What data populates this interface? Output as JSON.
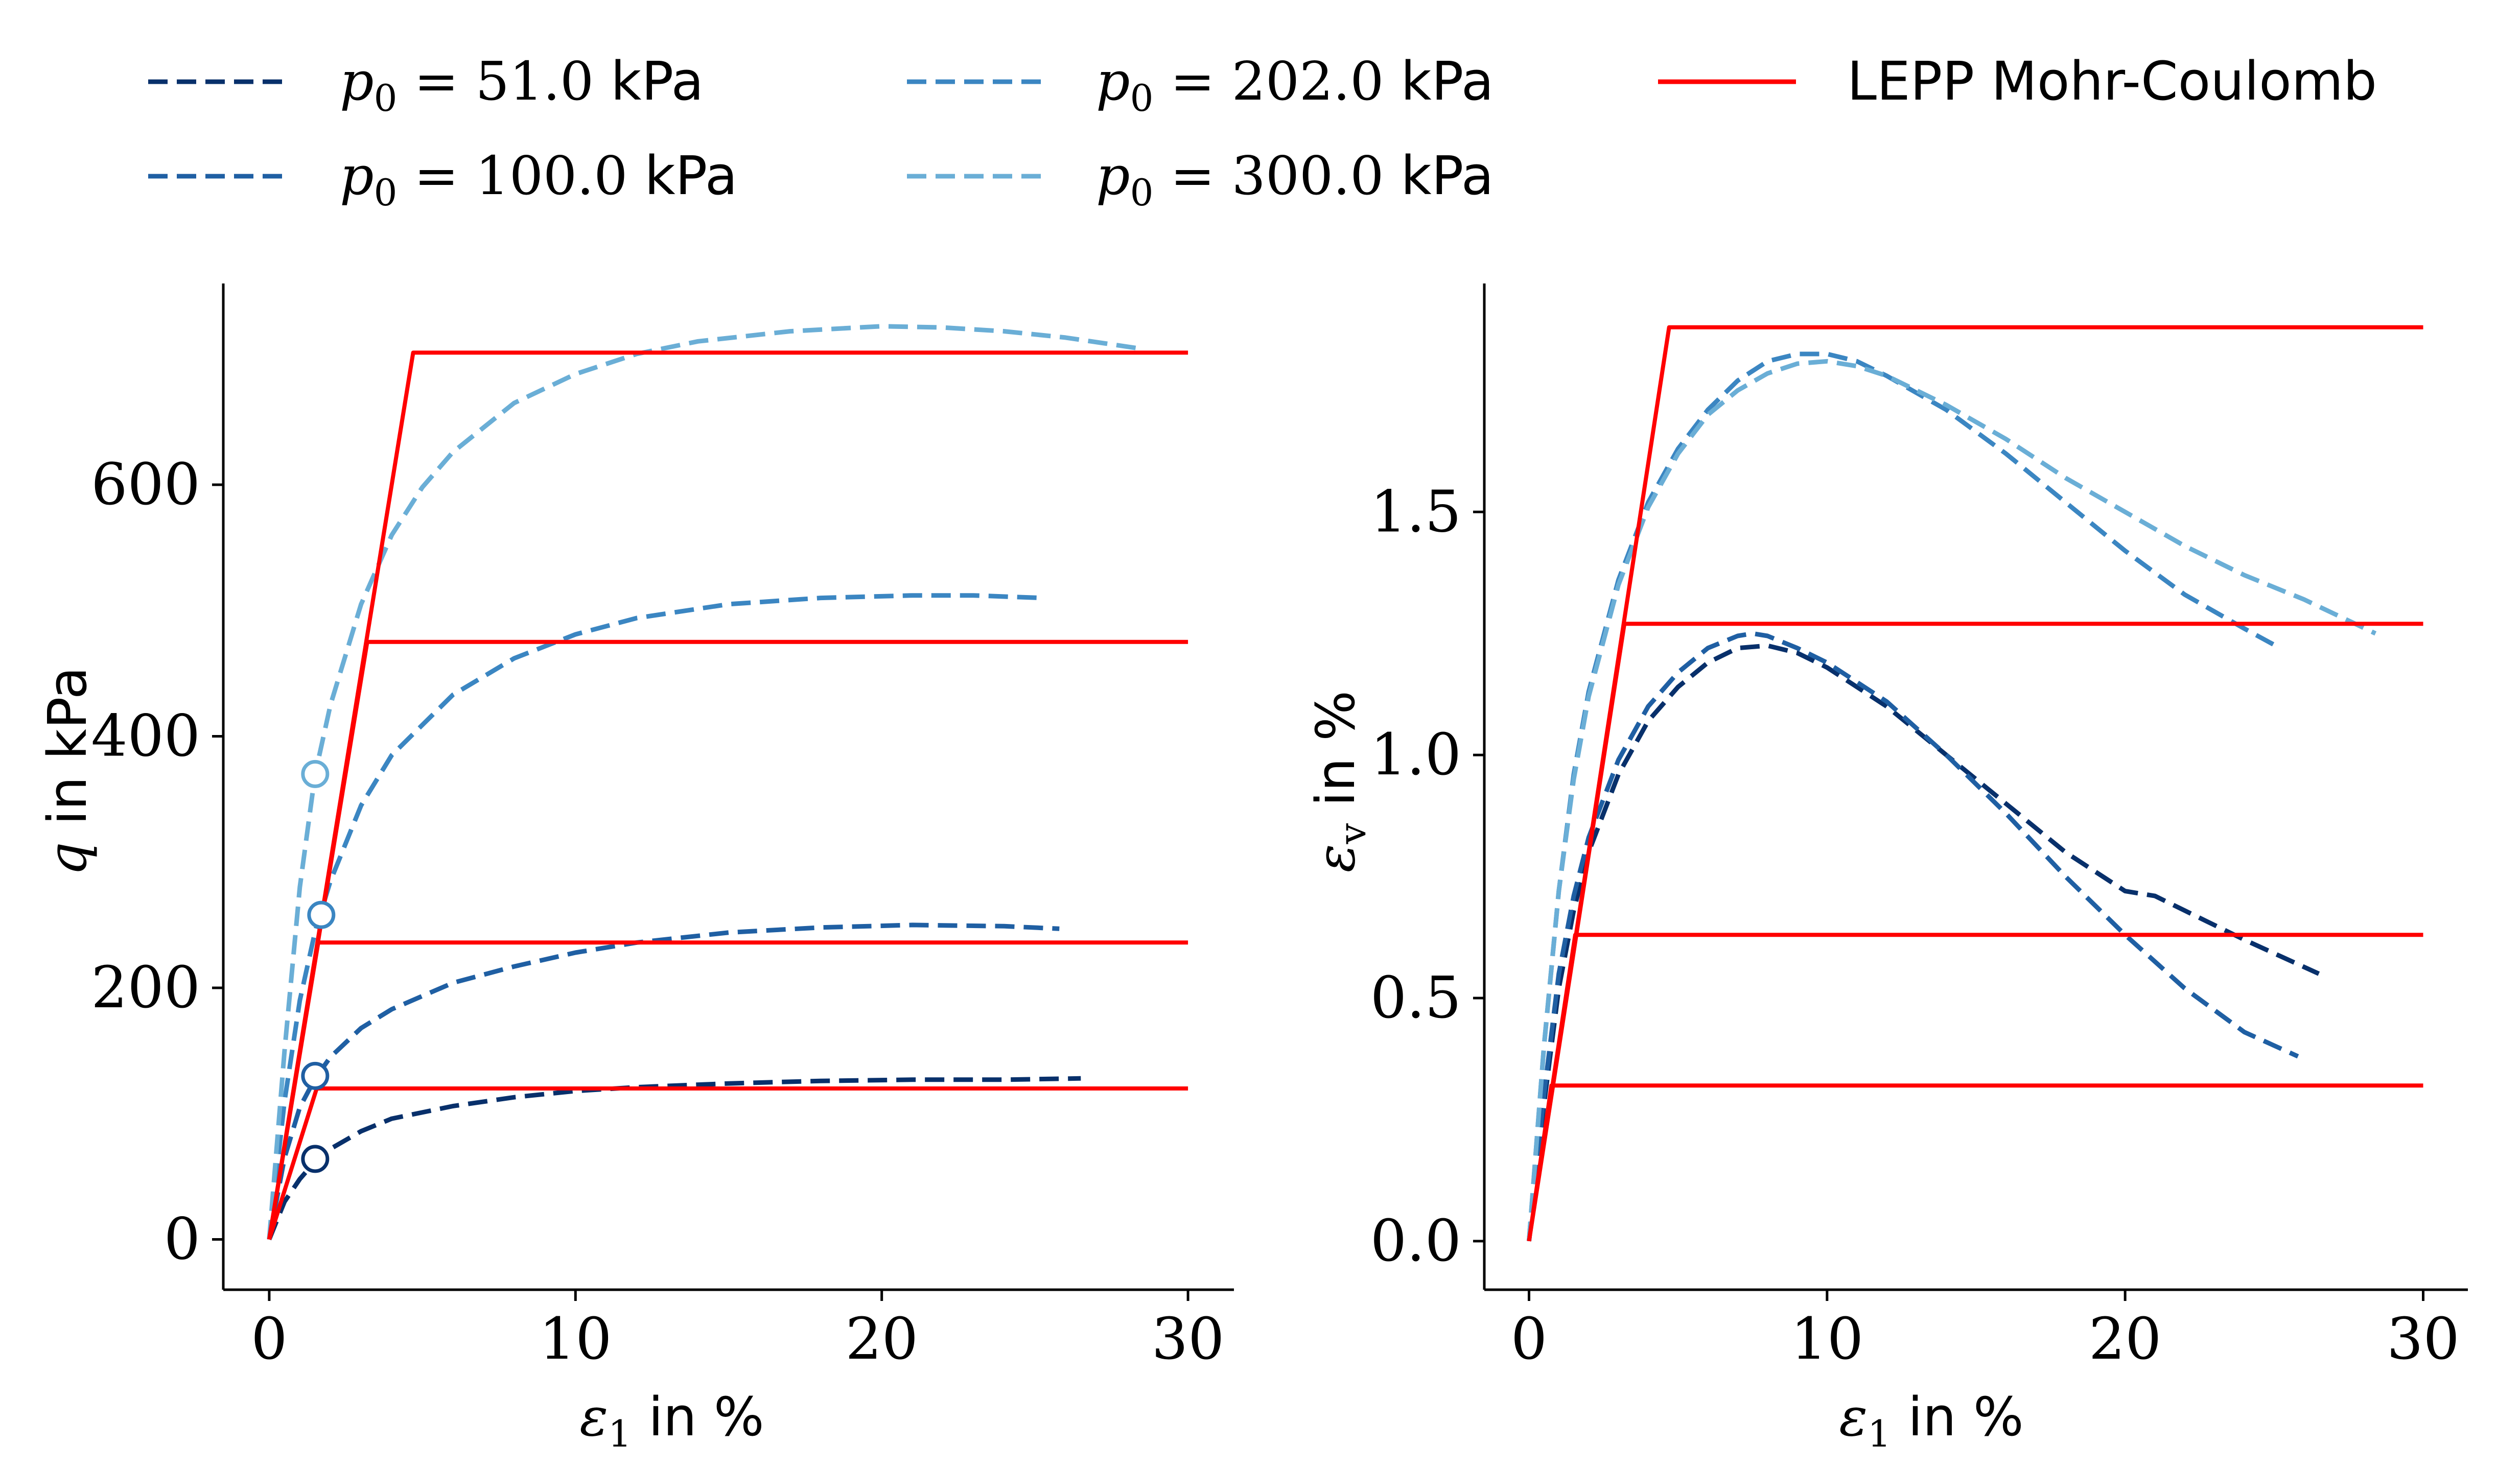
{
  "legend": {
    "position": "top",
    "entries": [
      {
        "p0": "51.0",
        "unit": "kPa"
      },
      {
        "p0": "100.0",
        "unit": "kPa"
      },
      {
        "p0": "202.0",
        "unit": "kPa"
      },
      {
        "p0": "300.0",
        "unit": "kPa"
      },
      {
        "label": "LEPP Mohr-Coulomb"
      }
    ]
  },
  "colors": {
    "p51": "#08306b",
    "p100": "#1f5fa3",
    "p202": "#3b86c2",
    "p300": "#6aaed6",
    "lepp": "#ff0000"
  },
  "chart_data": [
    {
      "type": "line",
      "xlabel": "in %",
      "xlabel_symbol": "ε1",
      "ylabel": "in kPa",
      "ylabel_symbol": "q",
      "xlim": [
        -1.5,
        31.5
      ],
      "ylim": [
        -40,
        760
      ],
      "xticks": [
        0,
        10,
        20,
        30
      ],
      "yticks": [
        0,
        200,
        400,
        600
      ],
      "grid": false,
      "series": [
        {
          "name": "p0 = 51.0 kPa",
          "style": "dashed",
          "colorKey": "p51",
          "x": [
            0,
            0.5,
            1,
            1.5,
            2,
            3,
            4,
            6,
            8,
            10,
            12,
            15,
            18,
            21,
            24,
            26.5
          ],
          "y": [
            0,
            30,
            48,
            62,
            72,
            86,
            96,
            106,
            113,
            118,
            121,
            124,
            126,
            127,
            127,
            128
          ]
        },
        {
          "name": "p0 = 100.0 kPa",
          "style": "dashed",
          "colorKey": "p100",
          "x": [
            0,
            0.5,
            1,
            1.5,
            2,
            3,
            4,
            6,
            8,
            10,
            12,
            15,
            18,
            21,
            24,
            25.8
          ],
          "y": [
            0,
            65,
            105,
            128,
            145,
            168,
            183,
            204,
            217,
            228,
            236,
            244,
            248,
            250,
            249,
            247
          ]
        },
        {
          "name": "p0 = 202.0 kPa",
          "style": "dashed",
          "colorKey": "p202",
          "x": [
            0,
            0.5,
            1,
            1.5,
            2,
            3,
            4,
            6,
            8,
            10,
            12,
            15,
            18,
            21,
            23,
            25.2
          ],
          "y": [
            0,
            110,
            190,
            245,
            285,
            345,
            385,
            433,
            462,
            481,
            494,
            505,
            510,
            512,
            512,
            510
          ]
        },
        {
          "name": "p0 = 300.0 kPa",
          "style": "dashed",
          "colorKey": "p300",
          "x": [
            0,
            0.5,
            1,
            1.5,
            2,
            3,
            4,
            5,
            6,
            8,
            10,
            12,
            14,
            17,
            20,
            22,
            24,
            26,
            28.5
          ],
          "y": [
            0,
            150,
            280,
            370,
            425,
            505,
            560,
            598,
            626,
            665,
            688,
            704,
            714,
            722,
            726,
            725,
            722,
            717,
            708
          ]
        },
        {
          "name": "LEPP Mohr-Coulomb",
          "style": "solid",
          "colorKey": "lepp",
          "x": [
            0,
            1.55,
            30
          ],
          "y": [
            0,
            120,
            120
          ]
        },
        {
          "name": "LEPP Mohr-Coulomb",
          "style": "solid",
          "colorKey": "lepp",
          "x": [
            0,
            1.6,
            30
          ],
          "y": [
            0,
            236,
            236
          ]
        },
        {
          "name": "LEPP Mohr-Coulomb",
          "style": "solid",
          "colorKey": "lepp",
          "x": [
            0,
            3.2,
            30
          ],
          "y": [
            0,
            475,
            475
          ]
        },
        {
          "name": "LEPP Mohr-Coulomb",
          "style": "solid",
          "colorKey": "lepp",
          "x": [
            0,
            4.7,
            30
          ],
          "y": [
            0,
            705,
            705
          ]
        }
      ],
      "markers": [
        {
          "x": 1.5,
          "y": 64,
          "colorKey": "p51"
        },
        {
          "x": 1.5,
          "y": 130,
          "colorKey": "p100"
        },
        {
          "x": 1.7,
          "y": 258,
          "colorKey": "p202"
        },
        {
          "x": 1.5,
          "y": 370,
          "colorKey": "p300"
        }
      ]
    },
    {
      "type": "line",
      "xlabel": "in %",
      "xlabel_symbol": "ε1",
      "ylabel": "in %",
      "ylabel_symbol": "εv",
      "xlim": [
        -1.5,
        31.5
      ],
      "ylim": [
        -0.1,
        1.97
      ],
      "xticks": [
        0,
        10,
        20,
        30
      ],
      "yticks": [
        0.0,
        0.5,
        1.0,
        1.5
      ],
      "ytick_labels": [
        "0.0",
        "0.5",
        "1.0",
        "1.5"
      ],
      "grid": false,
      "series": [
        {
          "name": "p0 = 51.0 kPa",
          "style": "dashed",
          "colorKey": "p51",
          "x": [
            0,
            0.5,
            1,
            1.5,
            2,
            3,
            4,
            5,
            6,
            7,
            8,
            9,
            10,
            12,
            14,
            16,
            18,
            20,
            21,
            22,
            24,
            26.5
          ],
          "y": [
            0,
            0.28,
            0.52,
            0.68,
            0.8,
            0.96,
            1.07,
            1.14,
            1.19,
            1.22,
            1.225,
            1.21,
            1.18,
            1.1,
            1.0,
            0.9,
            0.8,
            0.72,
            0.71,
            0.68,
            0.62,
            0.55
          ]
        },
        {
          "name": "p0 = 100.0 kPa",
          "style": "dashed",
          "colorKey": "p100",
          "x": [
            0,
            0.5,
            1,
            1.5,
            2,
            3,
            4,
            5,
            6,
            7,
            7.5,
            8,
            9,
            10,
            12,
            14,
            16,
            18,
            20,
            22,
            24,
            25.8
          ],
          "y": [
            0,
            0.3,
            0.55,
            0.71,
            0.83,
            0.99,
            1.1,
            1.17,
            1.22,
            1.245,
            1.25,
            1.245,
            1.22,
            1.19,
            1.11,
            1.0,
            0.88,
            0.75,
            0.63,
            0.52,
            0.43,
            0.38
          ]
        },
        {
          "name": "p0 = 202.0 kPa",
          "style": "dashed",
          "colorKey": "p202",
          "x": [
            0,
            0.5,
            1,
            1.5,
            2,
            3,
            4,
            5,
            6,
            7,
            8,
            9,
            10,
            11,
            12,
            14,
            16,
            18,
            20,
            22,
            24,
            25.2
          ],
          "y": [
            0,
            0.4,
            0.72,
            0.96,
            1.13,
            1.36,
            1.52,
            1.63,
            1.71,
            1.77,
            1.81,
            1.825,
            1.825,
            1.81,
            1.78,
            1.71,
            1.62,
            1.52,
            1.42,
            1.33,
            1.26,
            1.22
          ]
        },
        {
          "name": "p0 = 300.0 kPa",
          "style": "dashed",
          "colorKey": "p300",
          "x": [
            0,
            0.5,
            1,
            1.5,
            2,
            3,
            4,
            5,
            6,
            7,
            8,
            9,
            10,
            11,
            12,
            14,
            16,
            18,
            20,
            22,
            24,
            26,
            28.4
          ],
          "y": [
            0,
            0.4,
            0.72,
            0.95,
            1.12,
            1.35,
            1.51,
            1.62,
            1.7,
            1.75,
            1.785,
            1.805,
            1.81,
            1.8,
            1.78,
            1.72,
            1.65,
            1.57,
            1.5,
            1.43,
            1.37,
            1.32,
            1.25
          ]
        },
        {
          "name": "LEPP Mohr-Coulomb",
          "style": "solid",
          "colorKey": "lepp",
          "x": [
            0,
            0.75,
            30
          ],
          "y": [
            0,
            0.32,
            0.32
          ]
        },
        {
          "name": "LEPP Mohr-Coulomb",
          "style": "solid",
          "colorKey": "lepp",
          "x": [
            0,
            1.55,
            30
          ],
          "y": [
            0,
            0.63,
            0.63
          ]
        },
        {
          "name": "LEPP Mohr-Coulomb",
          "style": "solid",
          "colorKey": "lepp",
          "x": [
            0,
            3.2,
            30
          ],
          "y": [
            0,
            1.27,
            1.27
          ]
        },
        {
          "name": "LEPP Mohr-Coulomb",
          "style": "solid",
          "colorKey": "lepp",
          "x": [
            0,
            4.7,
            30
          ],
          "y": [
            0,
            1.88,
            1.88
          ]
        }
      ]
    }
  ]
}
